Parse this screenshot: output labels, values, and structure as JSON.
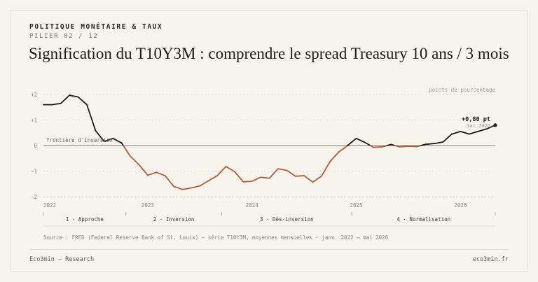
{
  "header": {
    "kicker": "POLITIQUE MONÉTAIRE & TAUX",
    "pillar": "PILIER 02 / 12",
    "title": "Signification du T10Y3M : comprendre le spread Treasury 10 ans / 3 mois"
  },
  "chart_data": {
    "type": "line",
    "unit_label": "points de pourcentage",
    "yticks": [
      "+2",
      "+1",
      "0",
      "−1",
      "−2"
    ],
    "ylim": [
      -2,
      2.3
    ],
    "xticks": [
      "2022",
      "2023",
      "2024",
      "2025",
      "2026"
    ],
    "zero_label": "frontière d'inversion",
    "x": [
      "2022-01",
      "2022-02",
      "2022-03",
      "2022-04",
      "2022-05",
      "2022-06",
      "2022-07",
      "2022-08",
      "2022-09",
      "2022-10",
      "2022-11",
      "2022-12",
      "2023-01",
      "2023-02",
      "2023-03",
      "2023-04",
      "2023-05",
      "2023-06",
      "2023-07",
      "2023-08",
      "2023-09",
      "2023-10",
      "2023-11",
      "2023-12",
      "2024-01",
      "2024-02",
      "2024-03",
      "2024-04",
      "2024-05",
      "2024-06",
      "2024-07",
      "2024-08",
      "2024-09",
      "2024-10",
      "2024-11",
      "2024-12",
      "2025-01",
      "2025-02",
      "2025-03",
      "2025-04",
      "2025-05",
      "2025-06",
      "2025-07",
      "2025-08",
      "2025-09",
      "2025-10",
      "2025-11",
      "2025-12",
      "2026-01",
      "2026-02",
      "2026-03",
      "2026-04",
      "2026-05"
    ],
    "values": [
      1.6,
      1.6,
      1.65,
      1.97,
      1.9,
      1.6,
      0.58,
      0.16,
      0.28,
      0.1,
      -0.42,
      -0.75,
      -1.16,
      -1.05,
      -1.18,
      -1.6,
      -1.72,
      -1.66,
      -1.58,
      -1.38,
      -1.18,
      -0.82,
      -1.02,
      -1.42,
      -1.4,
      -1.24,
      -1.28,
      -0.91,
      -0.97,
      -1.2,
      -1.18,
      -1.43,
      -1.2,
      -0.62,
      -0.25,
      0.0,
      0.28,
      0.12,
      -0.07,
      -0.05,
      0.04,
      -0.05,
      -0.03,
      -0.04,
      0.05,
      0.08,
      0.14,
      0.45,
      0.55,
      0.45,
      0.55,
      0.65,
      0.8
    ],
    "colors": {
      "positive": "#1f1b16",
      "negative": "#b85c38",
      "zero_line": "#7c756b",
      "grid": "#dcd5c9"
    },
    "last_value_label": "+0,80 pt",
    "last_date_label": "mai 2026",
    "phases": [
      {
        "label": "1 · Approche",
        "start": "2022-01",
        "end": "2022-10"
      },
      {
        "label": "2 · Inversion",
        "start": "2022-11",
        "end": "2023-09"
      },
      {
        "label": "3 · Dés-inversion",
        "start": "2023-10",
        "end": "2024-12"
      },
      {
        "label": "4 · Normalisation",
        "start": "2025-01",
        "end": "2026-05"
      }
    ]
  },
  "source": "Source : FRED (Federal Reserve Bank of St. Louis) — série T10Y3M, moyennes mensuelles · janv. 2022 → mai 2026",
  "footer": {
    "left": "Eco3min — Research",
    "right": "eco3min.fr"
  }
}
